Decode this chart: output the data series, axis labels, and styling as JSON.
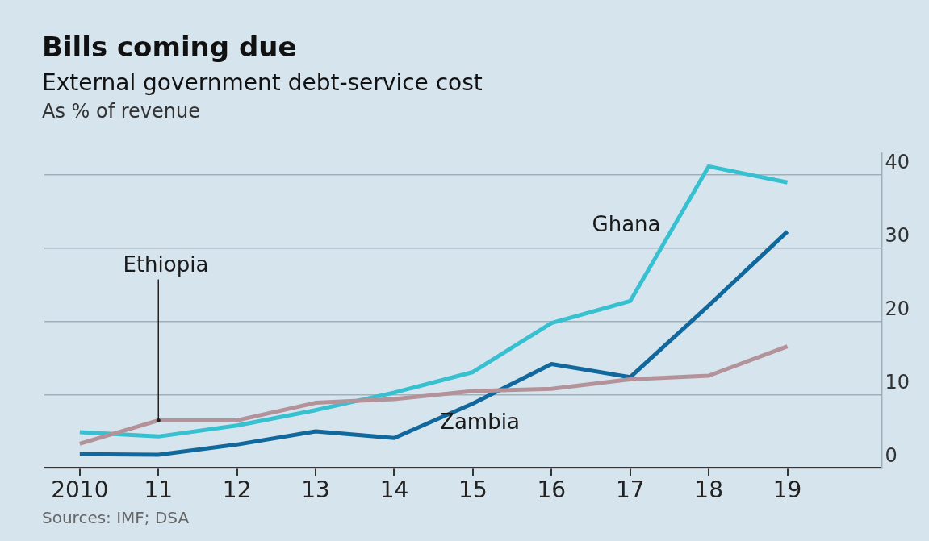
{
  "chart_data": {
    "type": "line",
    "title": "Bills coming due",
    "subtitle": "External government debt-service cost",
    "ylabel": "As % of revenue",
    "x": [
      2010,
      2011,
      2012,
      2013,
      2014,
      2015,
      2016,
      2017,
      2018,
      2019
    ],
    "series": [
      {
        "name": "Ethiopia",
        "color": "#b4929a",
        "values": [
          3.3,
          6.5,
          6.5,
          8.9,
          9.4,
          10.5,
          10.8,
          12.1,
          12.6,
          16.6
        ]
      },
      {
        "name": "Ghana",
        "color": "#36c0d0",
        "values": [
          4.9,
          4.3,
          5.8,
          7.9,
          10.3,
          13.1,
          19.8,
          22.8,
          41.2,
          39.0
        ]
      },
      {
        "name": "Zambia",
        "color": "#11689c",
        "values": [
          1.9,
          1.8,
          3.2,
          5.0,
          4.1,
          8.8,
          14.2,
          12.4,
          22.2,
          32.3
        ]
      }
    ],
    "xlim": [
      2009.55,
      2020.2
    ],
    "xticks": [
      {
        "value": 2010,
        "label": "2010"
      },
      {
        "value": 2011,
        "label": "11"
      },
      {
        "value": 2012,
        "label": "12"
      },
      {
        "value": 2013,
        "label": "13"
      },
      {
        "value": 2014,
        "label": "14"
      },
      {
        "value": 2015,
        "label": "15"
      },
      {
        "value": 2016,
        "label": "16"
      },
      {
        "value": 2017,
        "label": "17"
      },
      {
        "value": 2018,
        "label": "18"
      },
      {
        "value": 2019,
        "label": "19"
      }
    ],
    "ylim": [
      0,
      43
    ],
    "yticks": [
      0,
      10,
      20,
      30,
      40
    ],
    "grid": "y",
    "legend": false,
    "marker": "none",
    "line_style": "solid",
    "annotations": [
      "Sources: IMF; DSA"
    ]
  }
}
